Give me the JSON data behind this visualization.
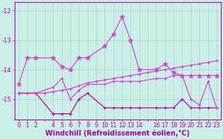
{
  "xlabel": "Windchill (Refroidissement éolien,°C)",
  "background_color": "#cceee8",
  "grid_color": "#aad4cc",
  "line_color_main": "#aa00aa",
  "line_color_light": "#cc44cc",
  "star_line_x": [
    0,
    1,
    2,
    4,
    5,
    6,
    7,
    8,
    10,
    11,
    12,
    13,
    14,
    16,
    17,
    18,
    19,
    20,
    21,
    22,
    23
  ],
  "star_line_y": [
    -14.5,
    -13.6,
    -13.6,
    -13.6,
    -13.9,
    -14.0,
    -13.6,
    -13.6,
    -13.2,
    -12.8,
    -12.2,
    -13.0,
    -14.0,
    -14.0,
    -13.8,
    -14.1,
    -14.2,
    -14.2,
    -14.2,
    -14.2,
    -14.2
  ],
  "mid_line_x": [
    0,
    1,
    2,
    4,
    5,
    6,
    7,
    8,
    10,
    11,
    12,
    13,
    14,
    16,
    17,
    18,
    19,
    20,
    21,
    22,
    23
  ],
  "mid_line_y": [
    -14.8,
    -14.8,
    -14.8,
    -14.6,
    -14.3,
    -15.0,
    -14.7,
    -14.5,
    -14.5,
    -14.4,
    -14.4,
    -14.4,
    -14.4,
    -14.3,
    -14.3,
    -14.2,
    -14.2,
    -15.0,
    -15.2,
    -14.4,
    -15.3
  ],
  "flat_line_x": [
    0,
    1,
    2,
    4,
    5,
    6,
    7,
    8,
    10,
    11,
    12,
    13,
    14,
    16,
    17,
    18,
    19,
    20,
    21,
    22,
    23
  ],
  "flat_line_y": [
    -14.8,
    -14.8,
    -14.8,
    -15.5,
    -15.5,
    -15.5,
    -15.0,
    -14.8,
    -15.3,
    -15.3,
    -15.3,
    -15.3,
    -15.3,
    -15.3,
    -15.3,
    -15.3,
    -15.0,
    -15.3,
    -15.3,
    -15.3,
    -15.3
  ],
  "rise_line_x": [
    0,
    1,
    2,
    3,
    4,
    5,
    6,
    7,
    8,
    9,
    10,
    11,
    12,
    13,
    14,
    15,
    16,
    17,
    18,
    19,
    20,
    21,
    22,
    23
  ],
  "rise_line_y": [
    -14.8,
    -14.8,
    -14.8,
    -14.8,
    -14.75,
    -14.7,
    -14.65,
    -14.55,
    -14.45,
    -14.4,
    -14.35,
    -14.3,
    -14.25,
    -14.2,
    -14.15,
    -14.1,
    -14.05,
    -14.0,
    -13.95,
    -13.9,
    -13.85,
    -13.8,
    -13.75,
    -13.7
  ],
  "ylim": [
    -15.7,
    -11.7
  ],
  "yticks": [
    -15,
    -14,
    -13,
    -12
  ],
  "xtick_labels": [
    "0",
    "1",
    "2",
    "",
    "4",
    "5",
    "6",
    "7",
    "8",
    "9",
    "10",
    "11",
    "12",
    "13",
    "14",
    "",
    "16",
    "17",
    "18",
    "19",
    "20",
    "21",
    "22",
    "23"
  ],
  "tick_fontsize": 6,
  "xlabel_fontsize": 7
}
